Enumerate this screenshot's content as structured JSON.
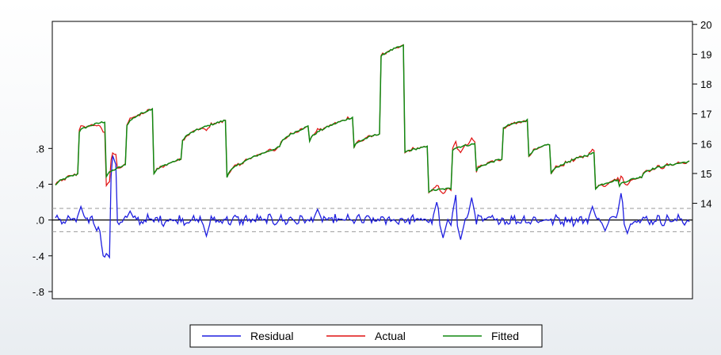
{
  "chart_data": {
    "type": "line",
    "title": "",
    "left_axis": {
      "ticks": [
        0.8,
        0.4,
        0.0,
        -0.4,
        -0.8
      ],
      "tick_labels": [
        ".8",
        ".4",
        ".0",
        "-.4",
        "-.8"
      ],
      "ylim": [
        -0.88,
        2.22
      ]
    },
    "right_axis": {
      "ticks": [
        20,
        19,
        18,
        17,
        16,
        15,
        14
      ],
      "tick_labels": [
        "20",
        "19",
        "18",
        "17",
        "16",
        "15",
        "14"
      ],
      "ylim": [
        10.8,
        20.1
      ]
    },
    "grid": false,
    "reference_lines": [
      {
        "value": 0.0,
        "style": "solid"
      },
      {
        "value": 0.13,
        "style": "dashed"
      },
      {
        "value": -0.13,
        "style": "dashed"
      }
    ],
    "legend": {
      "placement": "bottom-center",
      "entries": [
        "Residual",
        "Actual",
        "Fitted"
      ]
    },
    "colors": {
      "Residual": "#1f1fe0",
      "Actual": "#e01010",
      "Fitted": "#118811",
      "reference": "#9a9a9a"
    },
    "x_count": 400,
    "fitted_segments": [
      {
        "x_start": 0,
        "x_end": 15,
        "y_start": 14.6,
        "y_end": 15.0
      },
      {
        "x_start": 15,
        "x_end": 32,
        "y_start": 16.4,
        "y_end": 16.75
      },
      {
        "x_start": 32,
        "x_end": 45,
        "y_start": 14.9,
        "y_end": 15.3
      },
      {
        "x_start": 45,
        "x_end": 62,
        "y_start": 16.6,
        "y_end": 17.2
      },
      {
        "x_start": 62,
        "x_end": 80,
        "y_start": 15.0,
        "y_end": 15.5
      },
      {
        "x_start": 80,
        "x_end": 108,
        "y_start": 16.1,
        "y_end": 16.8
      },
      {
        "x_start": 108,
        "x_end": 142,
        "y_start": 14.9,
        "y_end": 15.9
      },
      {
        "x_start": 142,
        "x_end": 160,
        "y_start": 16.0,
        "y_end": 16.6
      },
      {
        "x_start": 160,
        "x_end": 188,
        "y_start": 16.1,
        "y_end": 16.9
      },
      {
        "x_start": 188,
        "x_end": 205,
        "y_start": 15.9,
        "y_end": 16.35
      },
      {
        "x_start": 205,
        "x_end": 220,
        "y_start": 18.9,
        "y_end": 19.3
      },
      {
        "x_start": 220,
        "x_end": 235,
        "y_start": 15.7,
        "y_end": 15.9
      },
      {
        "x_start": 235,
        "x_end": 250,
        "y_start": 14.4,
        "y_end": 14.5
      },
      {
        "x_start": 250,
        "x_end": 265,
        "y_start": 15.8,
        "y_end": 16.0
      },
      {
        "x_start": 265,
        "x_end": 282,
        "y_start": 15.1,
        "y_end": 15.5
      },
      {
        "x_start": 282,
        "x_end": 298,
        "y_start": 16.5,
        "y_end": 16.8
      },
      {
        "x_start": 298,
        "x_end": 312,
        "y_start": 15.6,
        "y_end": 16.0
      },
      {
        "x_start": 312,
        "x_end": 340,
        "y_start": 15.0,
        "y_end": 15.7
      },
      {
        "x_start": 340,
        "x_end": 355,
        "y_start": 14.5,
        "y_end": 14.8
      },
      {
        "x_start": 355,
        "x_end": 370,
        "y_start": 14.6,
        "y_end": 14.9
      },
      {
        "x_start": 370,
        "x_end": 399,
        "y_start": 15.0,
        "y_end": 15.4
      }
    ],
    "residual_events": [
      {
        "x": 16,
        "value": 0.15
      },
      {
        "x": 26,
        "value": -0.12
      },
      {
        "x": 30,
        "value": -0.42
      },
      {
        "x": 32,
        "value": -0.35
      },
      {
        "x": 36,
        "value": 0.75
      },
      {
        "x": 47,
        "value": 0.1
      },
      {
        "x": 95,
        "value": -0.18
      },
      {
        "x": 165,
        "value": 0.12
      },
      {
        "x": 240,
        "value": 0.2
      },
      {
        "x": 244,
        "value": -0.2
      },
      {
        "x": 252,
        "value": 0.28
      },
      {
        "x": 255,
        "value": -0.22
      },
      {
        "x": 262,
        "value": 0.25
      },
      {
        "x": 338,
        "value": 0.15
      },
      {
        "x": 346,
        "value": -0.12
      },
      {
        "x": 356,
        "value": 0.3
      },
      {
        "x": 360,
        "value": -0.15
      }
    ]
  }
}
